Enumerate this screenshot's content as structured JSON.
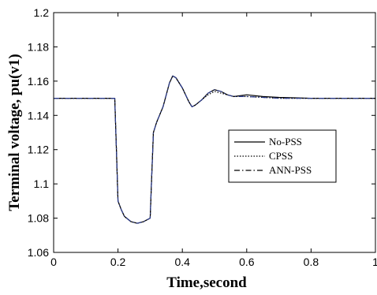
{
  "chart_data": {
    "type": "line",
    "title": "",
    "xlabel": "Time,second",
    "ylabel": "Terminal voltage, pu(v1)",
    "xlim": [
      0,
      1
    ],
    "ylim": [
      1.06,
      1.2
    ],
    "xticks": [
      "0",
      "0.2",
      "0.4",
      "0.6",
      "0.8",
      "1"
    ],
    "yticks": [
      "1.06",
      "1.08",
      "1.1",
      "1.12",
      "1.14",
      "1.16",
      "1.18",
      "1.2"
    ],
    "legend_position": "center-right",
    "grid": false,
    "series": [
      {
        "name": "No-PSS",
        "style": "solid",
        "color": "#000000",
        "x": [
          0,
          0.19,
          0.195,
          0.2,
          0.21,
          0.22,
          0.24,
          0.26,
          0.28,
          0.3,
          0.305,
          0.31,
          0.32,
          0.34,
          0.36,
          0.37,
          0.38,
          0.4,
          0.42,
          0.43,
          0.44,
          0.46,
          0.48,
          0.5,
          0.52,
          0.54,
          0.56,
          0.6,
          0.65,
          0.7,
          0.8,
          0.9,
          1.0
        ],
        "y": [
          1.15,
          1.15,
          1.12,
          1.09,
          1.085,
          1.081,
          1.078,
          1.077,
          1.078,
          1.08,
          1.105,
          1.13,
          1.136,
          1.145,
          1.159,
          1.163,
          1.162,
          1.156,
          1.148,
          1.145,
          1.146,
          1.149,
          1.153,
          1.155,
          1.154,
          1.152,
          1.151,
          1.152,
          1.151,
          1.1505,
          1.15,
          1.15,
          1.15
        ]
      },
      {
        "name": "CPSS",
        "style": "dotted",
        "color": "#000000",
        "x": [
          0,
          0.19,
          0.195,
          0.2,
          0.21,
          0.22,
          0.24,
          0.26,
          0.28,
          0.3,
          0.305,
          0.31,
          0.32,
          0.34,
          0.36,
          0.37,
          0.38,
          0.4,
          0.42,
          0.43,
          0.44,
          0.46,
          0.48,
          0.5,
          0.52,
          0.54,
          0.56,
          0.6,
          0.65,
          0.7,
          0.8,
          0.9,
          1.0
        ],
        "y": [
          1.15,
          1.15,
          1.12,
          1.09,
          1.085,
          1.081,
          1.078,
          1.077,
          1.078,
          1.08,
          1.105,
          1.13,
          1.136,
          1.145,
          1.159,
          1.163,
          1.162,
          1.156,
          1.148,
          1.145,
          1.146,
          1.149,
          1.152,
          1.154,
          1.153,
          1.152,
          1.151,
          1.151,
          1.1505,
          1.15,
          1.15,
          1.15,
          1.15
        ]
      },
      {
        "name": "ANN-PSS",
        "style": "dashdot",
        "color": "#2a3a8c",
        "x": [
          0,
          0.19,
          0.195,
          0.2,
          0.21,
          0.22,
          0.24,
          0.26,
          0.28,
          0.3,
          0.305,
          0.31,
          0.32,
          0.34,
          0.36,
          0.37,
          0.38,
          0.4,
          0.42,
          0.43,
          0.44,
          0.46,
          0.48,
          0.5,
          0.52,
          0.54,
          0.56,
          0.6,
          0.65,
          0.7,
          0.8,
          0.9,
          1.0
        ],
        "y": [
          1.15,
          1.15,
          1.12,
          1.09,
          1.085,
          1.081,
          1.078,
          1.077,
          1.078,
          1.08,
          1.105,
          1.13,
          1.136,
          1.145,
          1.159,
          1.163,
          1.162,
          1.156,
          1.148,
          1.145,
          1.146,
          1.149,
          1.153,
          1.155,
          1.154,
          1.152,
          1.151,
          1.151,
          1.1505,
          1.15,
          1.15,
          1.15,
          1.15
        ]
      }
    ]
  }
}
